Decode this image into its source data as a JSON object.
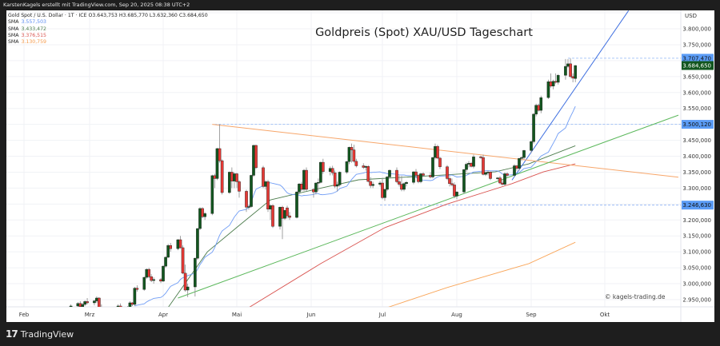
{
  "header": {
    "caption": "KarstenKagels erstellt mit TradingView.com, Sep 20, 2025 08:38 UTC+2"
  },
  "legend": {
    "symbol_line": "Gold Spot / U.S. Dollar · 1T · ICE  O3.643,753  H3.685,770  L3.632,360  C3.684,650",
    "sma": [
      {
        "label": "SMA",
        "value": "3.557,503",
        "color": "#5b8cf0"
      },
      {
        "label": "SMA",
        "value": "3.433,472",
        "color": "#4e7d4e"
      },
      {
        "label": "SMA",
        "value": "3.376,515",
        "color": "#d9534f"
      },
      {
        "label": "SMA",
        "value": "3.130,759",
        "color": "#f59a4a"
      }
    ]
  },
  "brand": {
    "name": "TradingView"
  },
  "chart_data": {
    "type": "candlestick",
    "title": "Goldpreis (Spot) XAU/USD Tageschart",
    "watermark": "© kagels-trading.de",
    "currency": "USD",
    "ylim": [
      2930,
      3850
    ],
    "y_ticks": [
      "3.800,000",
      "3.750,000",
      "3.650,000",
      "3.600,000",
      "3.550,000",
      "3.450,000",
      "3.400,000",
      "3.350,000",
      "3.300,000",
      "3.200,000",
      "3.150,000",
      "3.100,000",
      "3.050,000",
      "3.000,000",
      "2.950,000"
    ],
    "y_tick_values": [
      3800,
      3750,
      3650,
      3600,
      3550,
      3450,
      3400,
      3350,
      3300,
      3200,
      3150,
      3100,
      3050,
      3000,
      2950
    ],
    "x_ticks": [
      "Feb",
      "Mrz",
      "Apr",
      "Mai",
      "Jun",
      "Jul",
      "Aug",
      "Sep",
      "Okt"
    ],
    "grid": true,
    "colors": {
      "up": "#12561f",
      "down": "#e53935",
      "wick": "#8a8a8a"
    },
    "price_labels": [
      {
        "value": 3707.47,
        "text": "3.707,470",
        "color": "#5b9cf6",
        "from": "2025-09-16"
      },
      {
        "value": 3684.65,
        "text": "3.684,650",
        "color": "#12561f",
        "from": null
      },
      {
        "value": 3500.12,
        "text": "3.500,120",
        "color": "#5b9cf6",
        "from": "2025-04-22"
      },
      {
        "value": 3246.63,
        "text": "3.246,630",
        "color": "#5b9cf6",
        "from": "2025-06-30"
      }
    ],
    "trendlines": [
      {
        "color": "#3f6fe0",
        "points": [
          [
            "2025-08-24",
            3325
          ],
          [
            "2025-10-11",
            3857
          ]
        ]
      },
      {
        "color": "#f7a66a",
        "points": [
          [
            "2025-04-21",
            3500
          ],
          [
            "2025-11-01",
            3334
          ]
        ]
      },
      {
        "color": "#5cb85c",
        "points": [
          [
            "2025-04-07",
            2955
          ],
          [
            "2025-11-01",
            3529
          ]
        ]
      }
    ],
    "sma_lines": [
      {
        "value_label": "3.433,472",
        "color": "#4e7d4e",
        "points": [
          [
            "2025-04-03",
            2925
          ],
          [
            "2025-04-19",
            3100
          ],
          [
            "2025-05-02",
            3183
          ],
          [
            "2025-05-15",
            3263
          ],
          [
            "2025-06-05",
            3300
          ],
          [
            "2025-06-21",
            3326
          ],
          [
            "2025-07-24",
            3340
          ],
          [
            "2025-08-17",
            3351
          ],
          [
            "2025-08-31",
            3376
          ],
          [
            "2025-09-19",
            3433
          ]
        ]
      },
      {
        "value_label": "3.376,515",
        "color": "#d9534f",
        "points": [
          [
            "2025-05-06",
            2925
          ],
          [
            "2025-06-05",
            3063
          ],
          [
            "2025-07-02",
            3176
          ],
          [
            "2025-07-28",
            3250
          ],
          [
            "2025-08-24",
            3314
          ],
          [
            "2025-09-06",
            3351
          ],
          [
            "2025-09-19",
            3376
          ]
        ]
      },
      {
        "value_label": "3.130,759",
        "color": "#f9a65a",
        "points": [
          [
            "2025-07-03",
            2925
          ],
          [
            "2025-07-28",
            2988
          ],
          [
            "2025-08-31",
            3063
          ],
          [
            "2025-09-19",
            3130
          ]
        ]
      }
    ],
    "sma20_color": "#6f9cf5",
    "ohlc": [
      [
        2925,
        2935,
        2915,
        2930
      ],
      [
        2930,
        2942,
        2922,
        2938
      ],
      [
        2938,
        2945,
        2925,
        2928
      ],
      [
        2928,
        2940,
        2920,
        2935
      ],
      [
        2935,
        2948,
        2930,
        2944
      ],
      [
        2944,
        2955,
        2935,
        2940
      ],
      [
        2940,
        2950,
        2932,
        2946
      ],
      [
        2946,
        2960,
        2940,
        2955
      ],
      [
        2955,
        2958,
        2920,
        2925
      ],
      [
        2925,
        2935,
        2895,
        2900
      ],
      [
        2900,
        2915,
        2880,
        2890
      ],
      [
        2890,
        2920,
        2885,
        2915
      ],
      [
        2915,
        2925,
        2900,
        2908
      ],
      [
        2908,
        2925,
        2895,
        2920
      ],
      [
        2920,
        2935,
        2910,
        2930
      ],
      [
        2930,
        2938,
        2905,
        2912
      ],
      [
        2912,
        2930,
        2905,
        2925
      ],
      [
        2925,
        2945,
        2920,
        2940
      ],
      [
        2940,
        2942,
        2930,
        2935
      ],
      [
        2935,
        2990,
        2930,
        2986
      ],
      [
        2986,
        2995,
        2975,
        2982
      ],
      [
        2982,
        3022,
        2978,
        3020
      ],
      [
        3020,
        3048,
        3015,
        3045
      ],
      [
        3045,
        3050,
        3018,
        3022
      ],
      [
        3022,
        3030,
        3005,
        3010
      ],
      [
        3010,
        3020,
        3000,
        3013
      ],
      [
        3013,
        3018,
        3002,
        3008
      ],
      [
        3008,
        3058,
        3005,
        3055
      ],
      [
        3055,
        3086,
        3050,
        3083
      ],
      [
        3083,
        3125,
        3080,
        3120
      ],
      [
        3120,
        3128,
        3100,
        3110
      ],
      [
        3110,
        3140,
        3105,
        3138
      ],
      [
        3138,
        3150,
        3110,
        3113
      ],
      [
        3113,
        3120,
        3030,
        3033
      ],
      [
        3033,
        3060,
        2975,
        2980
      ],
      [
        2980,
        3000,
        2958,
        2990
      ],
      [
        2990,
        3082,
        2960,
        3080
      ],
      [
        3080,
        3175,
        3075,
        3173
      ],
      [
        3173,
        3240,
        3168,
        3236
      ],
      [
        3236,
        3240,
        3205,
        3210
      ],
      [
        3210,
        3225,
        3200,
        3220
      ],
      [
        3220,
        3342,
        3215,
        3339
      ],
      [
        3339,
        3345,
        3300,
        3330
      ],
      [
        3330,
        3426,
        3325,
        3424
      ],
      [
        3424,
        3500,
        3380,
        3386
      ],
      [
        3386,
        3390,
        3280,
        3286
      ],
      [
        3286,
        3352,
        3282,
        3350
      ],
      [
        3350,
        3365,
        3300,
        3322
      ],
      [
        3322,
        3350,
        3300,
        3345
      ],
      [
        3345,
        3348,
        3300,
        3320
      ],
      [
        3320,
        3325,
        3270,
        3290
      ],
      [
        3290,
        3295,
        3225,
        3240
      ],
      [
        3240,
        3248,
        3232,
        3242
      ],
      [
        3242,
        3342,
        3238,
        3340
      ],
      [
        3340,
        3436,
        3335,
        3434
      ],
      [
        3434,
        3436,
        3360,
        3364
      ],
      [
        3364,
        3370,
        3300,
        3305
      ],
      [
        3305,
        3325,
        3295,
        3320
      ],
      [
        3320,
        3326,
        3225,
        3234
      ],
      [
        3234,
        3250,
        3200,
        3245
      ],
      [
        3245,
        3250,
        3175,
        3180
      ],
      [
        3180,
        3242,
        3170,
        3240
      ],
      [
        3240,
        3245,
        3140,
        3205
      ],
      [
        3205,
        3232,
        3200,
        3230
      ],
      [
        3238,
        3245,
        3205,
        3213
      ],
      [
        3213,
        3225,
        3200,
        3208
      ],
      [
        3208,
        3290,
        3205,
        3288
      ],
      [
        3288,
        3316,
        3280,
        3313
      ],
      [
        3313,
        3320,
        3290,
        3296
      ],
      [
        3296,
        3360,
        3290,
        3356
      ],
      [
        3356,
        3365,
        3290,
        3296
      ],
      [
        3296,
        3300,
        3270,
        3288
      ],
      [
        3288,
        3318,
        3280,
        3316
      ],
      [
        3316,
        3330,
        3290,
        3318
      ],
      [
        3318,
        3383,
        3315,
        3381
      ],
      [
        3381,
        3392,
        3345,
        3352
      ],
      [
        3352,
        3368,
        3340,
        3362
      ],
      [
        3362,
        3370,
        3340,
        3348
      ],
      [
        3348,
        3355,
        3300,
        3306
      ],
      [
        3306,
        3320,
        3290,
        3310
      ],
      [
        3310,
        3352,
        3305,
        3350
      ],
      [
        3350,
        3385,
        3345,
        3383
      ],
      [
        3383,
        3430,
        3375,
        3428
      ],
      [
        3428,
        3440,
        3380,
        3420
      ],
      [
        3420,
        3436,
        3380,
        3384
      ],
      [
        3384,
        3392,
        3365,
        3370
      ],
      [
        3370,
        3378,
        3360,
        3365
      ],
      [
        3365,
        3372,
        3355,
        3368
      ],
      [
        3368,
        3372,
        3318,
        3321
      ],
      [
        3321,
        3335,
        3300,
        3308
      ],
      [
        3308,
        3320,
        3300,
        3312
      ],
      [
        3312,
        3322,
        3305,
        3316
      ],
      [
        3316,
        3332,
        3265,
        3270
      ],
      [
        3270,
        3298,
        3260,
        3296
      ],
      [
        3296,
        3338,
        3290,
        3335
      ],
      [
        3335,
        3358,
        3330,
        3356
      ],
      [
        3356,
        3365,
        3315,
        3320
      ],
      [
        3320,
        3340,
        3305,
        3312
      ],
      [
        3312,
        3338,
        3290,
        3296
      ],
      [
        3296,
        3318,
        3290,
        3314
      ],
      [
        3314,
        3322,
        3305,
        3318
      ],
      [
        3318,
        3353,
        3312,
        3351
      ],
      [
        3351,
        3360,
        3335,
        3340
      ],
      [
        3340,
        3345,
        3315,
        3320
      ],
      [
        3320,
        3348,
        3315,
        3345
      ],
      [
        3345,
        3350,
        3335,
        3340
      ],
      [
        3340,
        3350,
        3330,
        3335
      ],
      [
        3335,
        3398,
        3330,
        3396
      ],
      [
        3396,
        3440,
        3390,
        3431
      ],
      [
        3431,
        3436,
        3390,
        3394
      ],
      [
        3394,
        3398,
        3360,
        3367
      ],
      [
        3367,
        3372,
        3325,
        3330
      ],
      [
        3330,
        3338,
        3305,
        3314
      ],
      [
        3314,
        3330,
        3305,
        3310
      ],
      [
        3310,
        3318,
        3268,
        3275
      ],
      [
        3275,
        3290,
        3265,
        3288
      ],
      [
        3288,
        3360,
        3282,
        3358
      ],
      [
        3358,
        3380,
        3350,
        3375
      ],
      [
        3375,
        3385,
        3365,
        3378
      ],
      [
        3378,
        3382,
        3365,
        3368
      ],
      [
        3368,
        3405,
        3362,
        3398
      ],
      [
        3398,
        3402,
        3392,
        3396
      ],
      [
        3396,
        3405,
        3340,
        3343
      ],
      [
        3343,
        3352,
        3338,
        3348
      ],
      [
        3348,
        3355,
        3340,
        3350
      ],
      [
        3350,
        3352,
        3325,
        3330
      ],
      [
        3330,
        3335,
        3325,
        3332
      ],
      [
        3332,
        3338,
        3312,
        3316
      ],
      [
        3316,
        3325,
        3308,
        3312
      ],
      [
        3312,
        3350,
        3308,
        3345
      ],
      [
        3345,
        3350,
        3335,
        3340
      ],
      [
        3340,
        3375,
        3335,
        3370
      ],
      [
        3370,
        3372,
        3355,
        3362
      ],
      [
        3362,
        3395,
        3355,
        3393
      ],
      [
        3393,
        3400,
        3385,
        3396
      ],
      [
        3396,
        3420,
        3390,
        3418
      ],
      [
        3418,
        3450,
        3410,
        3446
      ],
      [
        3446,
        3535,
        3440,
        3532
      ],
      [
        3532,
        3565,
        3525,
        3560
      ],
      [
        3560,
        3565,
        3540,
        3544
      ],
      [
        3544,
        3590,
        3535,
        3584
      ],
      [
        3584,
        3640,
        3580,
        3634
      ],
      [
        3634,
        3660,
        3615,
        3620
      ],
      [
        3620,
        3640,
        3610,
        3635
      ],
      [
        3635,
        3660,
        3628,
        3632
      ],
      [
        3632,
        3658,
        3625,
        3654
      ],
      [
        3654,
        3705,
        3640,
        3682
      ],
      [
        3682,
        3705,
        3678,
        3690
      ],
      [
        3690,
        3707,
        3645,
        3650
      ],
      [
        3650,
        3660,
        3632,
        3645
      ],
      [
        3643.753,
        3685.77,
        3632.36,
        3684.65
      ]
    ]
  }
}
